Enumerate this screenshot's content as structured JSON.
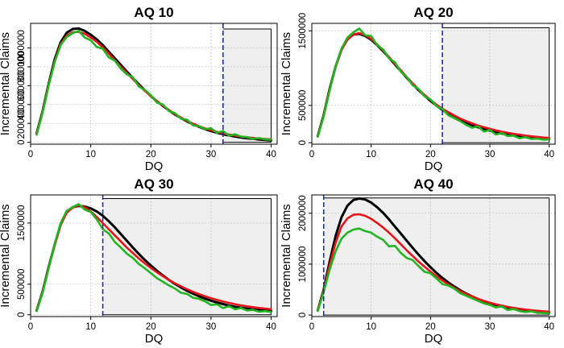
{
  "chart_data": [
    {
      "type": "line",
      "title": "AQ 10",
      "xlabel": "DQ",
      "ylabel": "Incremental Claims",
      "xlim": [
        0,
        41
      ],
      "ylim": [
        -20000,
        1260000
      ],
      "xticks": [
        0,
        10,
        20,
        30,
        40
      ],
      "yticks": [
        0,
        200000,
        400000,
        600000,
        800000,
        1000000
      ],
      "ytick_labels": [
        "0",
        "200000",
        "400000",
        "600000",
        "800000",
        "1000000"
      ],
      "cutoff_dq": 32,
      "shaded_range": [
        32,
        40
      ],
      "shaded_top": 1200000,
      "grid": true,
      "series": [
        {
          "name": "black",
          "color": "#000000",
          "values": [
            95000,
            330000,
            620000,
            880000,
            1060000,
            1160000,
            1200000,
            1205000,
            1180000,
            1140000,
            1090000,
            1030000,
            960000,
            890000,
            820000,
            750000,
            680000,
            615000,
            550000,
            490000,
            435000,
            385000,
            338000,
            295000,
            257000,
            222000,
            191000,
            164000,
            140000,
            119000,
            101000,
            86000,
            72000,
            61000,
            51000,
            43000,
            36000,
            30000,
            25000,
            21000
          ]
        },
        {
          "name": "red",
          "color": "#e8141c",
          "values": [
            88000,
            320000,
            610000,
            860000,
            1040000,
            1130000,
            1165000,
            1170000,
            1150000,
            1110000,
            1065000,
            1005000,
            940000,
            870000,
            800000,
            735000,
            670000,
            605000,
            545000,
            490000,
            435000,
            388000,
            343000,
            300000,
            262000,
            228000,
            198000,
            171000,
            148000,
            127000,
            110000,
            95000,
            82000,
            71000,
            61000,
            53000,
            46000,
            40000,
            35000,
            30000
          ]
        },
        {
          "name": "green",
          "color": "#22b522",
          "values": [
            80000,
            315000,
            600000,
            850000,
            1030000,
            1115000,
            1155000,
            1180000,
            1110000,
            1080000,
            1010000,
            990000,
            900000,
            865000,
            780000,
            720000,
            690000,
            590000,
            555000,
            500000,
            420000,
            400000,
            330000,
            310000,
            250000,
            240000,
            180000,
            170000,
            140000,
            150000,
            100000,
            120000,
            70000,
            85000,
            60000,
            55000,
            35000,
            45000,
            30000,
            28000
          ]
        }
      ]
    },
    {
      "type": "line",
      "title": "AQ 20",
      "xlabel": "DQ",
      "ylabel": "Incremental Claims",
      "xlim": [
        0,
        41
      ],
      "ylim": [
        -20000,
        1600000
      ],
      "xticks": [
        0,
        10,
        20,
        30,
        40
      ],
      "yticks": [
        0,
        500000,
        1500000
      ],
      "ytick_labels": [
        "0",
        "500000",
        "1500000"
      ],
      "cutoff_dq": 22,
      "shaded_range": [
        22,
        40
      ],
      "shaded_top": 1540000,
      "grid": true,
      "series": [
        {
          "name": "black",
          "color": "#000000",
          "values": [
            90000,
            370000,
            720000,
            1020000,
            1250000,
            1390000,
            1450000,
            1460000,
            1430000,
            1380000,
            1310000,
            1230000,
            1140000,
            1050000,
            960000,
            870000,
            785000,
            705000,
            630000,
            560000,
            497000,
            440000,
            390000,
            345000,
            305000,
            268000,
            236000,
            208000,
            183000,
            161000,
            142000,
            125000,
            110000,
            97000,
            86000,
            76000,
            67000,
            60000,
            53000,
            47000
          ]
        },
        {
          "name": "red",
          "color": "#e8141c",
          "values": [
            85000,
            360000,
            710000,
            1010000,
            1240000,
            1380000,
            1450000,
            1470000,
            1440000,
            1390000,
            1320000,
            1240000,
            1150000,
            1060000,
            970000,
            880000,
            795000,
            715000,
            640000,
            575000,
            510000,
            455000,
            410000,
            365000,
            325000,
            290000,
            260000,
            232000,
            208000,
            186000,
            166000,
            148000,
            133000,
            119000,
            107000,
            96000,
            86000,
            78000,
            70000,
            63000
          ]
        },
        {
          "name": "green",
          "color": "#22b522",
          "values": [
            80000,
            350000,
            700000,
            1020000,
            1260000,
            1410000,
            1480000,
            1530000,
            1440000,
            1430000,
            1310000,
            1250000,
            1130000,
            1080000,
            950000,
            880000,
            770000,
            720000,
            620000,
            580000,
            490000,
            450000,
            370000,
            330000,
            290000,
            240000,
            200000,
            220000,
            150000,
            170000,
            110000,
            130000,
            90000,
            95000,
            60000,
            75000,
            50000,
            55000,
            40000,
            45000
          ]
        }
      ]
    },
    {
      "type": "line",
      "title": "AQ 30",
      "xlabel": "DQ",
      "ylabel": "Incremental Claims",
      "xlim": [
        0,
        41
      ],
      "ylim": [
        -30000,
        1960000
      ],
      "xticks": [
        0,
        10,
        20,
        30,
        40
      ],
      "yticks": [
        0,
        500000,
        1500000
      ],
      "ytick_labels": [
        "0",
        "500000",
        "1500000"
      ],
      "cutoff_dq": 12,
      "shaded_range": [
        12,
        40
      ],
      "shaded_top": 1900000,
      "grid": true,
      "series": [
        {
          "name": "black",
          "color": "#000000",
          "values": [
            70000,
            380000,
            780000,
            1150000,
            1480000,
            1680000,
            1760000,
            1780000,
            1770000,
            1740000,
            1690000,
            1620000,
            1530000,
            1430000,
            1320000,
            1210000,
            1100000,
            995000,
            895000,
            805000,
            720000,
            642000,
            570000,
            505000,
            446000,
            393000,
            345000,
            302000,
            264000,
            230000,
            200000,
            174000,
            151000,
            131000,
            114000,
            99000,
            86000,
            75000,
            65000,
            57000
          ]
        },
        {
          "name": "red",
          "color": "#e8141c",
          "values": [
            65000,
            370000,
            770000,
            1140000,
            1470000,
            1670000,
            1750000,
            1790000,
            1760000,
            1690000,
            1600000,
            1500000,
            1400000,
            1300000,
            1200000,
            1100000,
            1010000,
            920000,
            840000,
            765000,
            695000,
            630000,
            570000,
            515000,
            465000,
            418000,
            376000,
            338000,
            303000,
            271000,
            243000,
            217000,
            194000,
            173000,
            155000,
            138000,
            124000,
            111000,
            100000,
            90000
          ]
        },
        {
          "name": "green",
          "color": "#22b522",
          "values": [
            60000,
            360000,
            760000,
            1160000,
            1500000,
            1700000,
            1760000,
            1810000,
            1720000,
            1680000,
            1560000,
            1400000,
            1330000,
            1190000,
            1100000,
            1000000,
            930000,
            830000,
            760000,
            680000,
            600000,
            540000,
            480000,
            430000,
            360000,
            340000,
            280000,
            260000,
            220000,
            160000,
            170000,
            110000,
            140000,
            90000,
            110000,
            70000,
            80000,
            50000,
            60000,
            45000
          ]
        }
      ]
    },
    {
      "type": "line",
      "title": "AQ 40",
      "xlabel": "DQ",
      "ylabel": "Incremental Claims",
      "xlim": [
        0,
        41
      ],
      "ylim": [
        -30000,
        2360000
      ],
      "xticks": [
        0,
        10,
        20,
        30,
        40
      ],
      "yticks": [
        0,
        1000000,
        2000000
      ],
      "ytick_labels": [
        "0",
        "1000000",
        "2000000"
      ],
      "cutoff_dq": 2,
      "shaded_range": [
        2,
        40
      ],
      "shaded_top": 2300000,
      "grid": true,
      "series": [
        {
          "name": "black",
          "color": "#000000",
          "values": [
            90000,
            500000,
            1050000,
            1550000,
            1920000,
            2150000,
            2260000,
            2290000,
            2270000,
            2210000,
            2120000,
            2010000,
            1880000,
            1740000,
            1600000,
            1460000,
            1320000,
            1185000,
            1058000,
            940000,
            830000,
            730000,
            640000,
            560000,
            487000,
            423000,
            366000,
            316000,
            272000,
            234000,
            201000,
            172000,
            147000,
            126000,
            108000,
            92000,
            79000,
            67000,
            57000,
            49000
          ]
        },
        {
          "name": "red",
          "color": "#e8141c",
          "values": [
            85000,
            480000,
            980000,
            1420000,
            1740000,
            1900000,
            1970000,
            1980000,
            1950000,
            1890000,
            1810000,
            1720000,
            1620000,
            1510000,
            1390000,
            1270000,
            1160000,
            1050000,
            950000,
            855000,
            765000,
            680000,
            605000,
            535000,
            472000,
            415000,
            364000,
            318000,
            278000,
            243000,
            212000,
            185000,
            162000,
            141000,
            123000,
            108000,
            95000,
            84000,
            75000,
            67000
          ]
        },
        {
          "name": "green",
          "color": "#22b522",
          "values": [
            80000,
            450000,
            890000,
            1250000,
            1500000,
            1620000,
            1680000,
            1700000,
            1650000,
            1620000,
            1540000,
            1480000,
            1350000,
            1360000,
            1220000,
            1120000,
            1080000,
            960000,
            850000,
            820000,
            720000,
            610000,
            580000,
            520000,
            430000,
            380000,
            330000,
            280000,
            230000,
            200000,
            150000,
            170000,
            100000,
            120000,
            80000,
            60000,
            75000,
            45000,
            40000,
            35000
          ]
        }
      ]
    }
  ]
}
